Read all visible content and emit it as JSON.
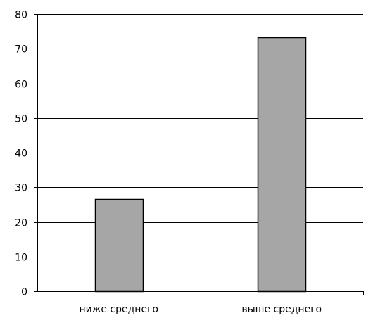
{
  "chart_data": {
    "type": "bar",
    "categories": [
      "ниже среднего",
      "выше среднего"
    ],
    "values": [
      26.5,
      73.3
    ],
    "yticks": [
      "0",
      "10",
      "20",
      "30",
      "40",
      "50",
      "60",
      "70",
      "80"
    ],
    "ylim": [
      0,
      80
    ],
    "grid": true,
    "legend": "none",
    "colors": {
      "bar_fill": "#a6a6a6",
      "bar_stroke": "#000000",
      "grid": "#000000",
      "axis": "#000000"
    }
  }
}
